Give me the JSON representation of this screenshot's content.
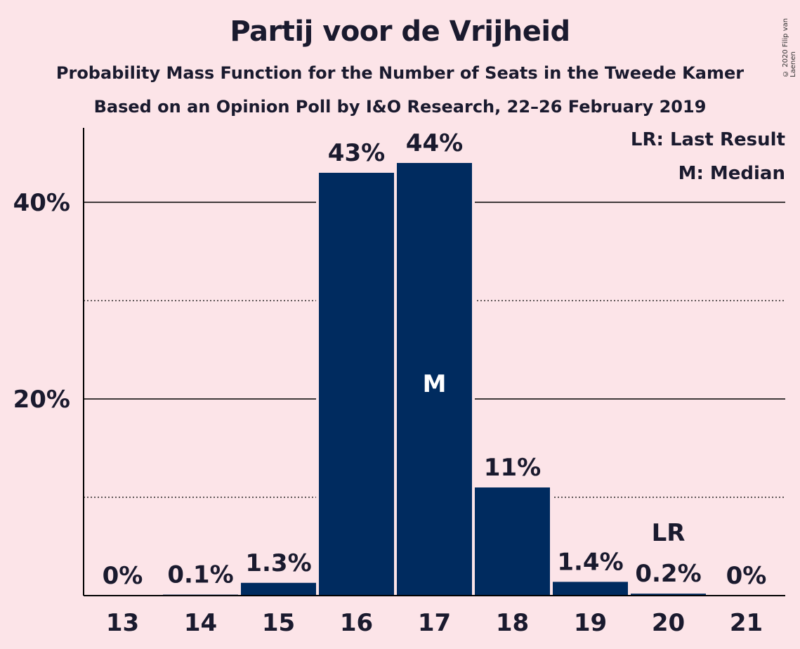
{
  "header": {
    "title": "Partij voor de Vrijheid",
    "subtitle": "Probability Mass Function for the Number of Seats in the Tweede Kamer",
    "subtitle2": "Based on an Opinion Poll by I&O Research, 22–26 February 2019",
    "copyright": "© 2020 Filip van Laenen"
  },
  "legend": {
    "last_result": "LR: Last Result",
    "median": "M: Median"
  },
  "colors": {
    "background": "#FCE4E8",
    "bar": "#002B5F",
    "text": "#1a1a2e"
  },
  "chart_data": {
    "type": "bar",
    "categories": [
      "13",
      "14",
      "15",
      "16",
      "17",
      "18",
      "19",
      "20",
      "21"
    ],
    "values": [
      0,
      0.1,
      1.3,
      43,
      44,
      11,
      1.4,
      0.2,
      0
    ],
    "bar_labels": [
      "0%",
      "0.1%",
      "1.3%",
      "43%",
      "44%",
      "11%",
      "1.4%",
      "0.2%",
      "0%"
    ],
    "y_ticks": [
      {
        "value": 20,
        "label": "20%"
      },
      {
        "value": 40,
        "label": "40%"
      }
    ],
    "minor_gridlines": [
      10,
      30
    ],
    "ylim": [
      0,
      47
    ],
    "median_category": "17",
    "median_marker": "M",
    "last_result_category": "20",
    "last_result_marker": "LR",
    "grid": true,
    "legend_position": "top-right"
  }
}
